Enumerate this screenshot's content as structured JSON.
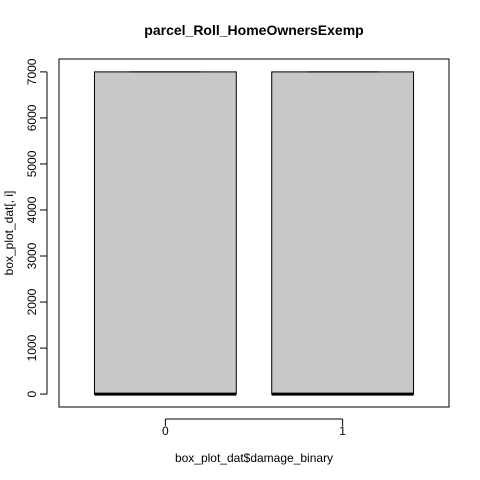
{
  "chart_data": {
    "type": "box",
    "title": "parcel_Roll_HomeOwnersExemp",
    "xlabel": "box_plot_dat$damage_binary",
    "ylabel": "box_plot_dat[, i]",
    "categories": [
      "0",
      "1"
    ],
    "y_ticks": [
      "0",
      "1000",
      "2000",
      "3000",
      "4000",
      "5000",
      "6000",
      "7000"
    ],
    "ylim": [
      -280,
      7280
    ],
    "boxes": [
      {
        "category": "0",
        "min": 0,
        "q1": 0,
        "median": 0,
        "q3": 7000,
        "max": 7000
      },
      {
        "category": "1",
        "min": 0,
        "q1": 0,
        "median": 0,
        "q3": 7000,
        "max": 7000
      }
    ],
    "box_fill": "#c8c8c8",
    "grid": false
  }
}
